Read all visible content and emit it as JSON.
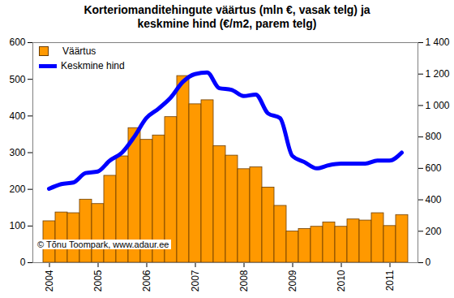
{
  "chart_data": {
    "type": "bar",
    "title": "Korteriomanditehingute väärtus (mln €, vasak telg) ja keskmine hind (€/m2, parem telg)",
    "categories": [
      "2004",
      null,
      null,
      null,
      "2005",
      null,
      null,
      null,
      "2006",
      null,
      null,
      null,
      "2007",
      null,
      null,
      null,
      "2008",
      null,
      null,
      null,
      "2009",
      null,
      null,
      null,
      "2010",
      null,
      null,
      null,
      "2011",
      null
    ],
    "series": [
      {
        "name": "Väärtus",
        "type": "bar",
        "color": "#FF9900",
        "values": [
          113,
          137,
          135,
          172,
          160,
          237,
          290,
          367,
          335,
          347,
          397,
          509,
          432,
          443,
          318,
          292,
          255,
          260,
          205,
          155,
          85,
          92,
          98,
          110,
          98,
          118,
          115,
          135,
          100,
          130
        ]
      },
      {
        "name": "Keskmine hind",
        "type": "line",
        "color": "#0000FF",
        "axis": "y2",
        "values": [
          470,
          500,
          510,
          570,
          580,
          650,
          700,
          800,
          920,
          980,
          1050,
          1150,
          1200,
          1210,
          1110,
          1100,
          1060,
          1070,
          950,
          920,
          680,
          640,
          600,
          620,
          630,
          630,
          630,
          650,
          650,
          700
        ]
      }
    ],
    "ylim": [
      0,
      600
    ],
    "yticks": [
      0,
      100,
      200,
      300,
      400,
      500,
      600
    ],
    "y2lim": [
      0,
      1400
    ],
    "y2ticks": [
      0,
      200,
      400,
      600,
      800,
      {
        "value": 1000,
        "label": "1 000"
      },
      {
        "value": 1200,
        "label": "1 200"
      },
      {
        "value": 1400,
        "label": "1 400"
      }
    ],
    "legend": "top-left",
    "grid": false,
    "annotations": [
      "© Tõnu Toompark, www.adaur.ee"
    ]
  }
}
